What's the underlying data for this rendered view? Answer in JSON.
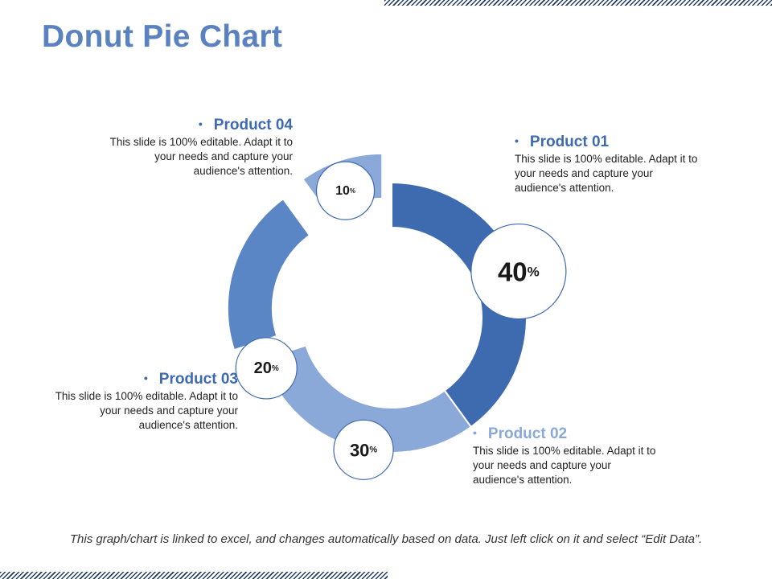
{
  "title": "Donut Pie Chart",
  "footer": "This graph/chart is linked to excel, and changes automatically based on data. Just left click on it and select “Edit Data”.",
  "colors": {
    "title": "#5a82c0",
    "dark_blue": "#3e6ab0",
    "mid_blue": "#5b86c6",
    "light_blue": "#8aa8d8",
    "bubble_stroke": "#3e6ab0"
  },
  "products": [
    {
      "name": "Product 01",
      "description": "This slide is 100% editable. Adapt it to your needs and capture your audience's attention."
    },
    {
      "name": "Product 02",
      "description": "This slide is 100% editable. Adapt it to your needs and capture your audience's attention."
    },
    {
      "name": "Product 03",
      "description": "This slide is 100% editable. Adapt it to your needs and capture your audience's attention."
    },
    {
      "name": "Product 04",
      "description": "This slide is 100% editable. Adapt it to your needs and capture your audience's attention."
    }
  ],
  "chart_data": {
    "type": "pie",
    "variant": "donut",
    "title": "",
    "categories": [
      "Product 01",
      "Product 02",
      "Product 03",
      "Product 04"
    ],
    "values": [
      40,
      30,
      20,
      10
    ],
    "value_suffix": "%",
    "exploded": [
      "Product 03",
      "Product 04"
    ],
    "slice_colors": [
      "#3e6ab0",
      "#8aa8d8",
      "#5b86c6",
      "#8aa8d8"
    ]
  }
}
